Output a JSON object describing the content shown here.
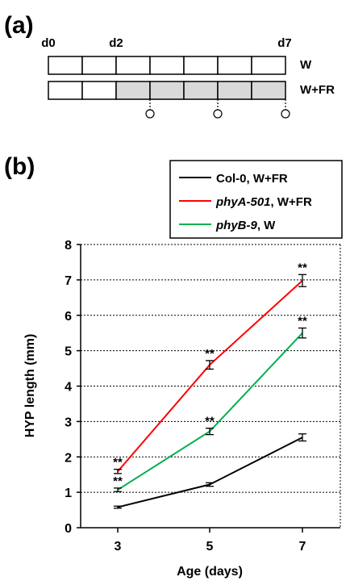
{
  "panel_a": {
    "label": "(a)",
    "day_labels": [
      "d0",
      "d2",
      "d7"
    ],
    "row_w_label": "W",
    "row_wfr_label": "W+FR",
    "n_cells": 7,
    "shade_from_cell": 2,
    "sample_marker_cells": [
      3,
      5,
      7
    ]
  },
  "panel_b": {
    "label": "(b)"
  },
  "chart_data": {
    "type": "line",
    "xlabel": "Age (days)",
    "ylabel": "HYP length (mm)",
    "x": [
      3,
      5,
      7
    ],
    "ylim": [
      0,
      8
    ],
    "yticks": [
      "0",
      "1",
      "2",
      "3",
      "4",
      "5",
      "6",
      "7",
      "8"
    ],
    "xticks": [
      "3",
      "5",
      "7"
    ],
    "grid": "horizontal dotted",
    "legend_position": "top-right",
    "series": [
      {
        "name_main": "Col-0",
        "name_suffix": ", W+FR",
        "name_italic": false,
        "color": "#000000",
        "values": [
          0.58,
          1.22,
          2.55
        ],
        "errors": [
          0.03,
          0.05,
          0.1
        ],
        "significance": [
          "",
          "",
          ""
        ]
      },
      {
        "name_main": "phyA-501",
        "name_suffix": ", W+FR",
        "name_italic": true,
        "color": "#ff0000",
        "values": [
          1.59,
          4.6,
          6.98
        ],
        "errors": [
          0.06,
          0.12,
          0.17
        ],
        "significance": [
          "**",
          "**",
          "**"
        ]
      },
      {
        "name_main": "phyB-9",
        "name_suffix": ", W",
        "name_italic": true,
        "color": "#00b050",
        "values": [
          1.07,
          2.72,
          5.5
        ],
        "errors": [
          0.05,
          0.09,
          0.14
        ],
        "significance": [
          "**",
          "**",
          "**"
        ]
      }
    ]
  }
}
